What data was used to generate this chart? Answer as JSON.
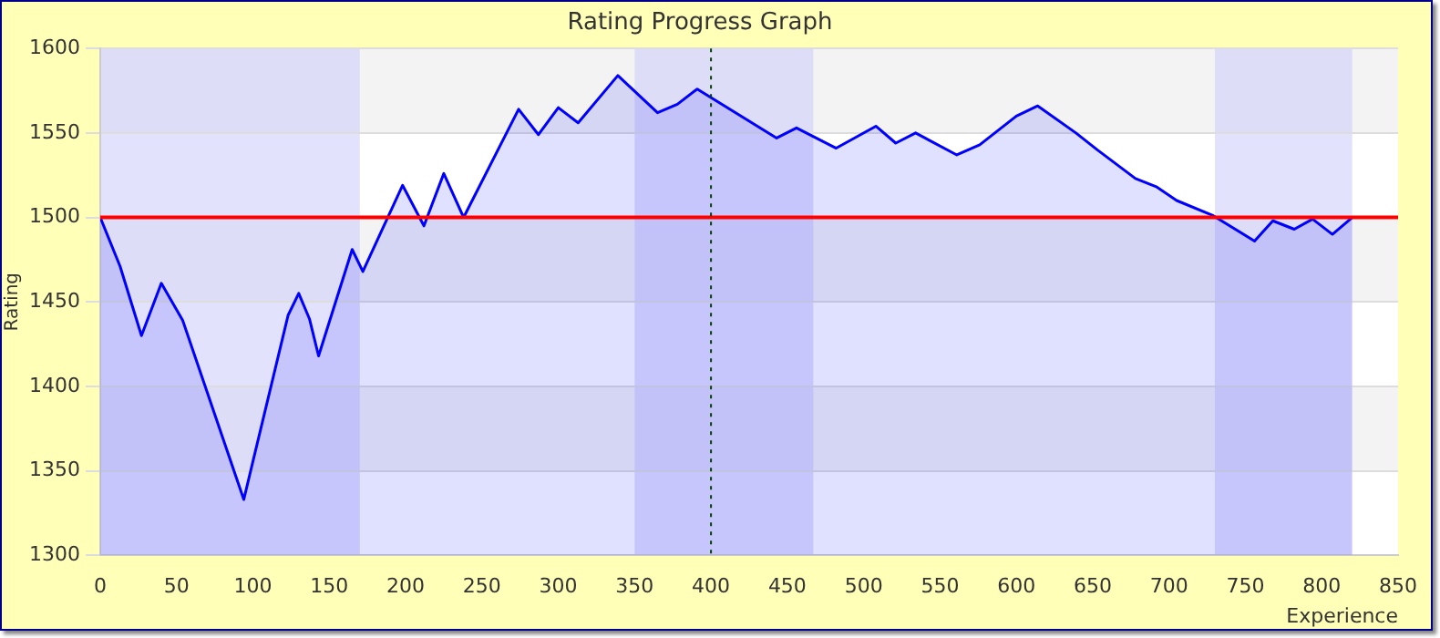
{
  "chart_data": {
    "type": "area",
    "title": "Rating Progress Graph",
    "xlabel": "Experience",
    "ylabel": "Rating",
    "x": [
      0,
      13,
      27,
      40,
      54,
      94,
      123,
      130,
      137,
      143,
      165,
      172,
      198,
      212,
      225,
      238,
      274,
      287,
      300,
      313,
      339,
      365,
      378,
      391,
      443,
      456,
      482,
      508,
      521,
      534,
      561,
      576,
      600,
      614,
      639,
      653,
      678,
      692,
      705,
      729,
      756,
      768,
      782,
      794,
      807,
      820
    ],
    "series": [
      {
        "color": "#0000ff",
        "values": [
          1500,
          1471,
          1430,
          1461,
          1439,
          1333,
          1442,
          1455,
          1440,
          1418,
          1481,
          1468,
          1519,
          1495,
          1526,
          1500,
          1564,
          1549,
          1565,
          1556,
          1584,
          1562,
          1567,
          1576,
          1547,
          1553,
          1541,
          1554,
          1544,
          1550,
          1537,
          1543,
          1560,
          1566,
          1550,
          1540,
          1523,
          1518,
          1510,
          1501,
          1486,
          1498,
          1493,
          1499,
          1490,
          1500
        ]
      }
    ],
    "xlim": [
      0,
      850
    ],
    "xticks": [
      0,
      50,
      100,
      150,
      200,
      250,
      300,
      350,
      400,
      450,
      500,
      550,
      600,
      650,
      700,
      750,
      800,
      850
    ],
    "ylim": [
      1300,
      1600
    ],
    "yticks": [
      1300,
      1350,
      1400,
      1450,
      1500,
      1550,
      1600
    ],
    "ref_lines": [
      {
        "axis": "y",
        "value": 1500,
        "color": "#ff0000",
        "line_style": "solid"
      },
      {
        "axis": "x",
        "value": 400,
        "color": "#004000",
        "line_style": "dotted"
      }
    ],
    "bands": [
      {
        "axis": "x",
        "from": 0,
        "to": 170,
        "color": "#cfcffa"
      },
      {
        "axis": "x",
        "from": 350,
        "to": 467,
        "color": "#cfcffa"
      },
      {
        "axis": "x",
        "from": 730,
        "to": 820,
        "color": "#cfcffa"
      }
    ],
    "grid": "y",
    "legend": false
  }
}
